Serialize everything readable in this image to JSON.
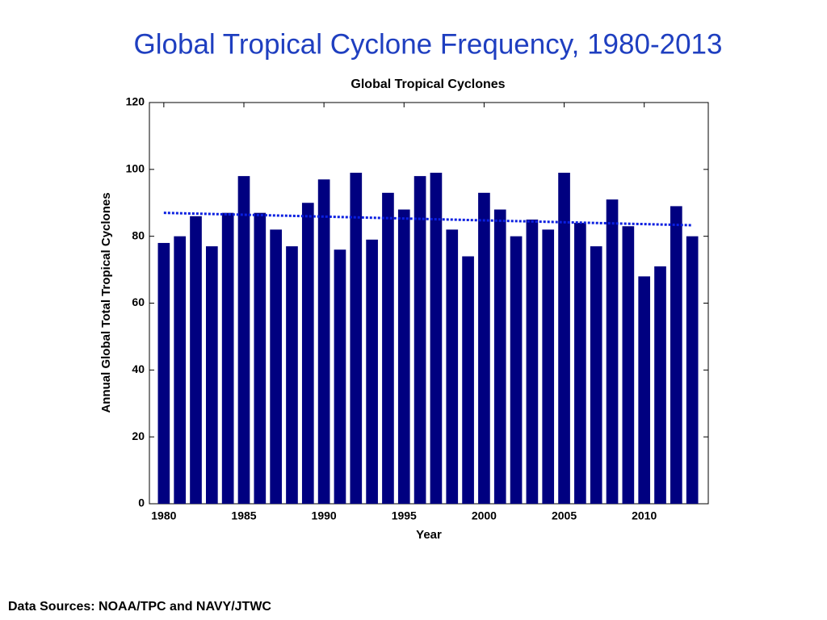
{
  "heading": "Global Tropical Cyclone Frequency, 1980-2013",
  "footer": "Data Sources: NOAA/TPC and NAVY/JTWC",
  "chart_data": {
    "type": "bar",
    "title": "Global Tropical Cyclones",
    "x_label": "Year",
    "y_label": "Annual Global Total Tropical Cyclones",
    "x": [
      1980,
      1981,
      1982,
      1983,
      1984,
      1985,
      1986,
      1987,
      1988,
      1989,
      1990,
      1991,
      1992,
      1993,
      1994,
      1995,
      1996,
      1997,
      1998,
      1999,
      2000,
      2001,
      2002,
      2003,
      2004,
      2005,
      2006,
      2007,
      2008,
      2009,
      2010,
      2011,
      2012,
      2013
    ],
    "values": [
      78,
      80,
      86,
      77,
      87,
      98,
      87,
      82,
      77,
      90,
      97,
      76,
      99,
      79,
      93,
      88,
      98,
      99,
      82,
      74,
      93,
      88,
      80,
      85,
      82,
      99,
      84,
      77,
      91,
      83,
      68,
      71,
      89,
      80
    ],
    "color": "#000080",
    "trend": {
      "x": [
        1980,
        2013
      ],
      "values": [
        87,
        83.3
      ],
      "color": "#0a1fe0"
    },
    "xlim": [
      1979.1,
      2014
    ],
    "xticks": [
      1980,
      1985,
      1990,
      1995,
      2000,
      2005,
      2010
    ],
    "ylim": [
      0,
      120
    ],
    "yticks": [
      0,
      20,
      40,
      60,
      80,
      100,
      120
    ]
  }
}
